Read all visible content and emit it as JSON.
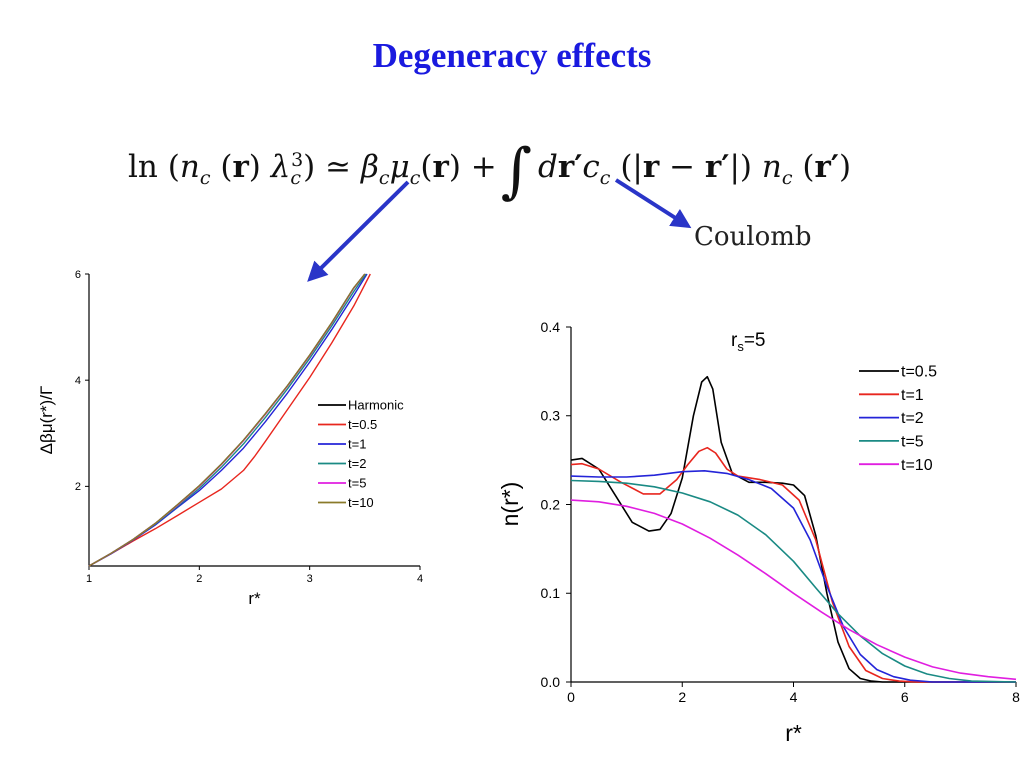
{
  "slide": {
    "title": "Degeneracy effects",
    "equation": {
      "ln": "ln",
      "n": "n",
      "c": "c",
      "r": "r",
      "lambda": "λ",
      "three": "3",
      "approx": "≃",
      "beta": "β",
      "mu": "μ",
      "plus": "+",
      "integral": "∫",
      "d": "d",
      "rprime": "r′",
      "minus": "−",
      "open": "(",
      "close": ")",
      "bar": "|"
    },
    "coulomb_label": "Coulomb",
    "arrow_color": "#2a35c8"
  },
  "chart_data": [
    {
      "type": "line",
      "title": "",
      "xlabel": "r*",
      "ylabel": "Δβμ(r*)/Γ",
      "xlim": [
        1,
        4
      ],
      "ylim": [
        0.5,
        6
      ],
      "xticks": [
        1,
        2,
        3,
        4
      ],
      "yticks": [
        2,
        4,
        6
      ],
      "grid": false,
      "legend_position": "center-right",
      "series": [
        {
          "name": "Harmonic",
          "color": "#000000",
          "x": [
            1.0,
            1.2,
            1.4,
            1.6,
            1.8,
            2.0,
            2.2,
            2.4,
            2.6,
            2.8,
            3.0,
            3.2,
            3.4,
            3.5
          ],
          "y": [
            0.5,
            0.74,
            1.0,
            1.3,
            1.65,
            2.01,
            2.42,
            2.87,
            3.37,
            3.9,
            4.47,
            5.08,
            5.74,
            6.0
          ]
        },
        {
          "name": "t=0.5",
          "color": "#e8261e",
          "x": [
            1.0,
            1.2,
            1.4,
            1.6,
            1.8,
            2.0,
            2.2,
            2.4,
            2.5,
            2.6,
            2.8,
            3.0,
            3.2,
            3.4,
            3.55
          ],
          "y": [
            0.5,
            0.73,
            0.97,
            1.2,
            1.45,
            1.7,
            1.95,
            2.3,
            2.56,
            2.85,
            3.45,
            4.05,
            4.7,
            5.4,
            6.0
          ]
        },
        {
          "name": "t=1",
          "color": "#2424d8",
          "x": [
            1.0,
            1.2,
            1.4,
            1.6,
            1.8,
            2.0,
            2.2,
            2.4,
            2.6,
            2.8,
            3.0,
            3.2,
            3.4,
            3.52
          ],
          "y": [
            0.5,
            0.73,
            0.99,
            1.27,
            1.6,
            1.92,
            2.3,
            2.72,
            3.22,
            3.76,
            4.34,
            4.95,
            5.6,
            6.0
          ]
        },
        {
          "name": "t=2",
          "color": "#1a8a84",
          "x": [
            1.0,
            1.2,
            1.4,
            1.6,
            1.8,
            2.0,
            2.2,
            2.4,
            2.6,
            2.8,
            3.0,
            3.2,
            3.4,
            3.51
          ],
          "y": [
            0.5,
            0.74,
            1.0,
            1.29,
            1.62,
            1.96,
            2.36,
            2.8,
            3.3,
            3.84,
            4.41,
            5.02,
            5.67,
            6.0
          ]
        },
        {
          "name": "t=5",
          "color": "#e01ee0",
          "x": [
            1.0,
            1.2,
            1.4,
            1.6,
            1.8,
            2.0,
            2.2,
            2.4,
            2.6,
            2.8,
            3.0,
            3.2,
            3.4,
            3.5
          ],
          "y": [
            0.5,
            0.74,
            1.0,
            1.3,
            1.64,
            2.0,
            2.41,
            2.86,
            3.36,
            3.89,
            4.46,
            5.07,
            5.73,
            6.0
          ]
        },
        {
          "name": "t=10",
          "color": "#8a7a2a",
          "x": [
            1.0,
            1.2,
            1.4,
            1.6,
            1.8,
            2.0,
            2.2,
            2.4,
            2.6,
            2.8,
            3.0,
            3.2,
            3.4,
            3.5
          ],
          "y": [
            0.5,
            0.74,
            1.0,
            1.3,
            1.65,
            2.01,
            2.42,
            2.87,
            3.37,
            3.9,
            4.47,
            5.08,
            5.74,
            6.0
          ]
        }
      ]
    },
    {
      "type": "line",
      "title": "rs=5",
      "title_main": "r",
      "title_sub": "s",
      "title_tail": "=5",
      "xlabel": "r*",
      "ylabel": "n(r*)",
      "xlim": [
        0,
        8
      ],
      "ylim": [
        0,
        0.4
      ],
      "xticks": [
        0,
        2,
        4,
        6,
        8
      ],
      "yticks": [
        0.0,
        0.1,
        0.2,
        0.3,
        0.4
      ],
      "ytick_labels": [
        "0.0",
        "0.1",
        "0.2",
        "0.3",
        "0.4"
      ],
      "grid": false,
      "legend_position": "top-right",
      "series": [
        {
          "name": "t=0.5",
          "color": "#000000",
          "x": [
            0,
            0.2,
            0.5,
            0.8,
            1.1,
            1.4,
            1.6,
            1.8,
            2.0,
            2.2,
            2.35,
            2.45,
            2.55,
            2.7,
            2.9,
            3.2,
            3.5,
            3.8,
            4.0,
            4.2,
            4.4,
            4.6,
            4.8,
            5.0,
            5.2,
            5.4,
            5.6,
            6.0,
            8.0
          ],
          "y": [
            0.25,
            0.252,
            0.24,
            0.21,
            0.18,
            0.17,
            0.172,
            0.19,
            0.23,
            0.3,
            0.338,
            0.344,
            0.33,
            0.27,
            0.235,
            0.225,
            0.225,
            0.224,
            0.222,
            0.21,
            0.165,
            0.1,
            0.045,
            0.015,
            0.004,
            0.001,
            0.0,
            0.0,
            0.0
          ]
        },
        {
          "name": "t=1",
          "color": "#e8261e",
          "x": [
            0,
            0.2,
            0.5,
            0.9,
            1.3,
            1.6,
            1.9,
            2.1,
            2.3,
            2.45,
            2.6,
            2.8,
            3.0,
            3.4,
            3.8,
            4.1,
            4.4,
            4.7,
            5.0,
            5.3,
            5.6,
            5.9,
            6.2,
            8.0
          ],
          "y": [
            0.245,
            0.246,
            0.24,
            0.225,
            0.212,
            0.212,
            0.228,
            0.245,
            0.26,
            0.264,
            0.258,
            0.24,
            0.232,
            0.228,
            0.222,
            0.205,
            0.16,
            0.09,
            0.04,
            0.013,
            0.004,
            0.001,
            0.0,
            0.0
          ]
        },
        {
          "name": "t=2",
          "color": "#2424d8",
          "x": [
            0,
            0.5,
            1.0,
            1.5,
            2.0,
            2.4,
            2.8,
            3.2,
            3.6,
            4.0,
            4.3,
            4.6,
            4.9,
            5.2,
            5.5,
            5.8,
            6.1,
            6.5,
            7.0,
            8.0
          ],
          "y": [
            0.232,
            0.231,
            0.231,
            0.233,
            0.237,
            0.238,
            0.235,
            0.228,
            0.218,
            0.196,
            0.16,
            0.108,
            0.062,
            0.031,
            0.014,
            0.006,
            0.002,
            0.0,
            0.0,
            0.0
          ]
        },
        {
          "name": "t=5",
          "color": "#1a8a84",
          "x": [
            0,
            0.5,
            1.0,
            1.5,
            2.0,
            2.5,
            3.0,
            3.5,
            4.0,
            4.4,
            4.8,
            5.2,
            5.6,
            6.0,
            6.4,
            6.8,
            7.2,
            8.0
          ],
          "y": [
            0.227,
            0.226,
            0.224,
            0.22,
            0.213,
            0.203,
            0.188,
            0.166,
            0.136,
            0.106,
            0.077,
            0.052,
            0.032,
            0.018,
            0.009,
            0.004,
            0.001,
            0.0
          ]
        },
        {
          "name": "t=10",
          "color": "#e01ee0",
          "x": [
            0,
            0.5,
            1.0,
            1.5,
            2.0,
            2.5,
            3.0,
            3.5,
            4.0,
            4.5,
            5.0,
            5.5,
            6.0,
            6.5,
            7.0,
            7.5,
            8.0
          ],
          "y": [
            0.205,
            0.203,
            0.198,
            0.19,
            0.178,
            0.162,
            0.143,
            0.122,
            0.1,
            0.079,
            0.059,
            0.042,
            0.028,
            0.017,
            0.01,
            0.006,
            0.003
          ]
        }
      ]
    }
  ]
}
